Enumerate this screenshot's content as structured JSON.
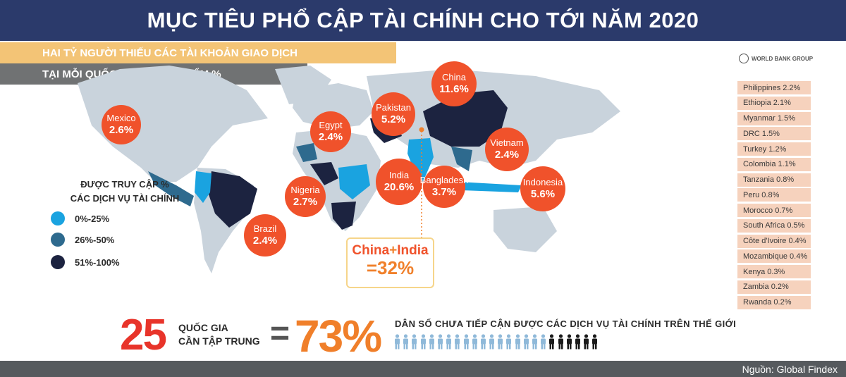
{
  "title": "MỤC TIÊU PHỔ CẬP TÀI CHÍNH CHO TỚI NĂM 2020",
  "subtitle1": "HAI TỶ NGƯỜI THIẾU CÁC TÀI KHOẢN GIAO DỊCH",
  "subtitle2": "TẠI MỖI QUỐC GIA TRỌNG ĐIỂM %",
  "logo_text": "WORLD BANK GROUP",
  "bubbles": [
    {
      "name": "Mexico",
      "pct": "2.6%"
    },
    {
      "name": "Egypt",
      "pct": "2.4%"
    },
    {
      "name": "Pakistan",
      "pct": "5.2%"
    },
    {
      "name": "China",
      "pct": "11.6%"
    },
    {
      "name": "Vietnam",
      "pct": "2.4%"
    },
    {
      "name": "Indonesia",
      "pct": "5.6%"
    },
    {
      "name": "India",
      "pct": "20.6%"
    },
    {
      "name": "Bangladesh",
      "pct": "3.7%"
    },
    {
      "name": "Nigeria",
      "pct": "2.7%"
    },
    {
      "name": "Brazil",
      "pct": "2.4%"
    }
  ],
  "legend": {
    "title_line1": "ĐƯỢC TRUY CẬP %",
    "title_line2": "CÁC DỊCH VỤ TÀI CHÍNH",
    "items": [
      {
        "label": "0%-25%",
        "color": "#1aa3e0"
      },
      {
        "label": "26%-50%",
        "color": "#2e6a8e"
      },
      {
        "label": "51%-100%",
        "color": "#1c2340"
      }
    ]
  },
  "country_list": [
    "Philippines 2.2%",
    "Ethiopia 2.1%",
    "Myanmar 1.5%",
    "DRC 1.5%",
    "Turkey 1.2%",
    "Colombia 1.1%",
    "Tanzania 0.8%",
    "Peru 0.8%",
    "Morocco 0.7%",
    "South Africa 0.5%",
    "Côte d'Ivoire 0.4%",
    "Mozambique 0.4%",
    "Kenya 0.3%",
    "Zambia 0.2%",
    "Rwanda 0.2%"
  ],
  "china_india": {
    "china": "China",
    "plus": "+",
    "india": "India",
    "result": "=32%"
  },
  "bottom": {
    "count": "25",
    "count_label_line1": "QUỐC GIA",
    "count_label_line2": "CẦN TẬP TRUNG",
    "equals": "=",
    "percent": "73%",
    "percent_label": "DÂN SỐ CHƯA TIẾP CẬN ĐƯỢC CÁC DỊCH VỤ TÀI CHÍNH TRÊN THẾ GIỚI",
    "people_filled_fraction": 0.73
  },
  "source": "Nguồn: Global Findex",
  "colors": {
    "title_bg": "#2b3a6b",
    "bubble": "#f0522b",
    "accent_orange": "#f07f2a",
    "accent_red": "#e8342a",
    "land": "#c9d3dc",
    "light_blue": "#1aa3e0",
    "mid_blue": "#2e6a8e",
    "dark_navy": "#1c2340"
  }
}
